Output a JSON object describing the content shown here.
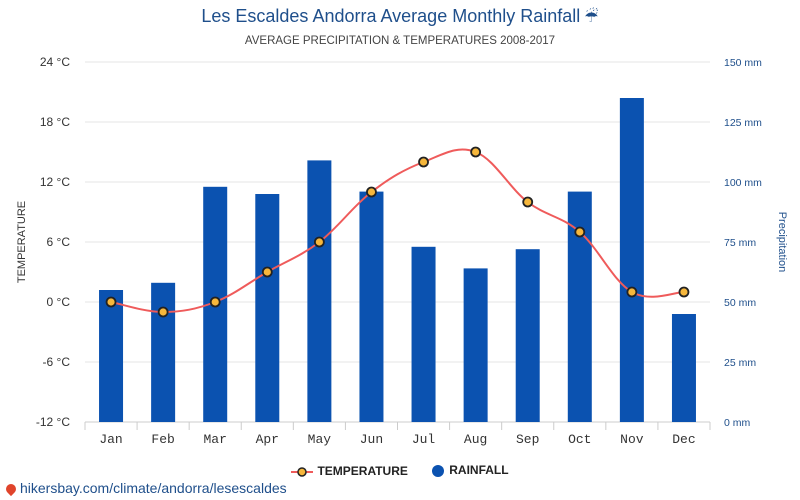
{
  "header": {
    "title": "Les Escaldes Andorra Average Monthly Rainfall",
    "title_icon": "umbrella-icon",
    "subtitle": "AVERAGE PRECIPITATION & TEMPERATURES 2008-2017"
  },
  "legend": {
    "temperature": "TEMPERATURE",
    "rainfall": "RAINFALL"
  },
  "footer": {
    "source": "hikersbay.com/climate/andorra/lesescaldes"
  },
  "colors": {
    "bar": "#0b52b0",
    "line": "#ef5b5b",
    "marker_fill": "#f6b73c",
    "marker_stroke": "#222222",
    "grid": "#e6e6e6",
    "right_axis": "#1f4f8b"
  },
  "chart_data": {
    "type": "bar",
    "categories": [
      "Jan",
      "Feb",
      "Mar",
      "Apr",
      "May",
      "Jun",
      "Jul",
      "Aug",
      "Sep",
      "Oct",
      "Nov",
      "Dec"
    ],
    "series": [
      {
        "name": "RAINFALL",
        "type": "bar",
        "axis": "right",
        "values": [
          55,
          58,
          98,
          95,
          109,
          96,
          73,
          64,
          72,
          96,
          135,
          45
        ]
      },
      {
        "name": "TEMPERATURE",
        "type": "line",
        "axis": "left",
        "values": [
          0,
          -1,
          0,
          3,
          6,
          11,
          14,
          15,
          10,
          7,
          1,
          1
        ]
      }
    ],
    "ylabel": "TEMPERATURE",
    "ylabel_right": "Precipitation",
    "ylim": [
      -12,
      24
    ],
    "ylim_right": [
      0,
      150
    ],
    "yticks": [
      "-12 °C",
      "-6 °C",
      "0 °C",
      "6 °C",
      "12 °C",
      "18 °C",
      "24 °C"
    ],
    "yticks_right": [
      "0 mm",
      "25 mm",
      "50 mm",
      "75 mm",
      "100 mm",
      "125 mm",
      "150 mm"
    ],
    "grid": true,
    "legend_position": "bottom-center"
  }
}
